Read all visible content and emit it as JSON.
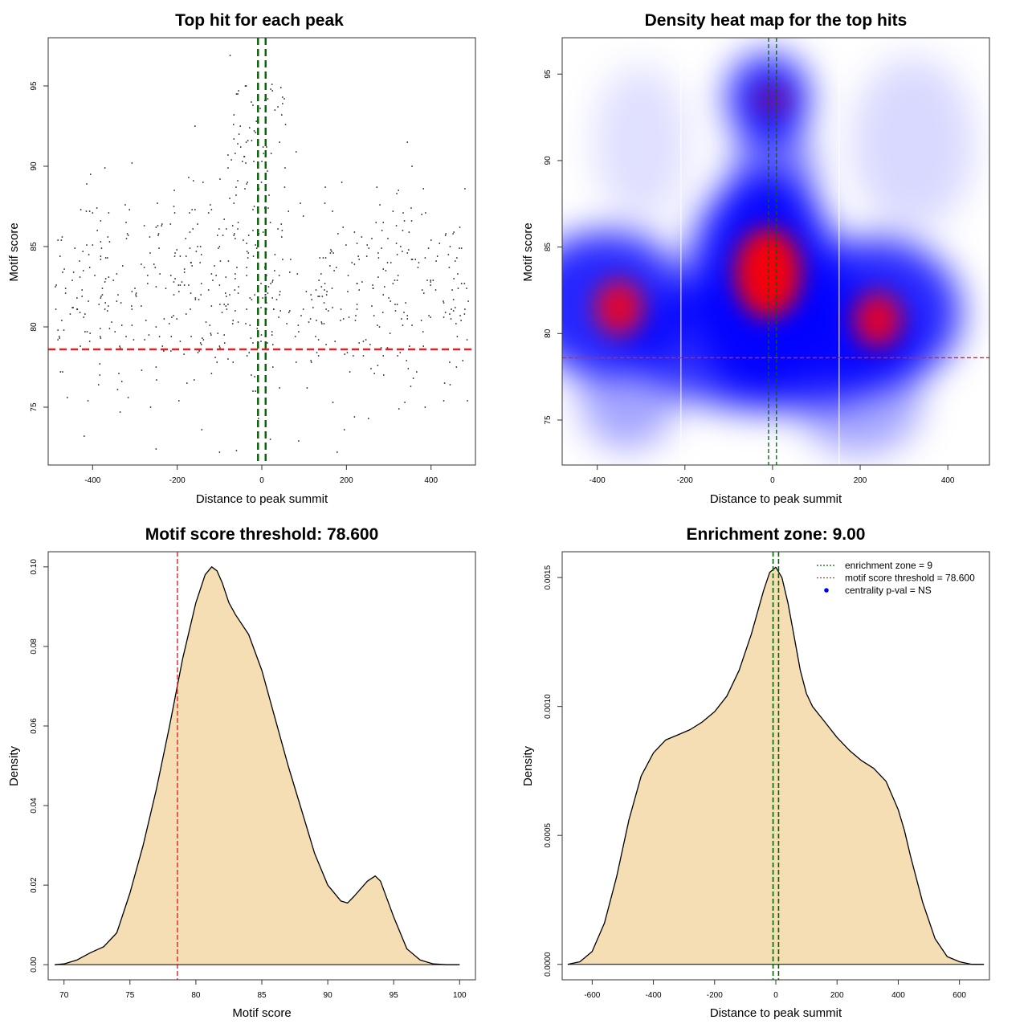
{
  "chart_data": [
    {
      "type": "scatter",
      "title": "Top hit for each peak",
      "xlabel": "Distance to peak summit",
      "ylabel": "Motif score",
      "xlim": [
        -505,
        505
      ],
      "ylim": [
        71.4,
        98.0
      ],
      "x_ticks": [
        -400,
        -200,
        0,
        200,
        400
      ],
      "x_tick_labels": [
        "-400",
        "-200",
        "0",
        "200",
        "400"
      ],
      "y_ticks": [
        75,
        80,
        85,
        90,
        95
      ],
      "y_tick_labels": [
        "75",
        "80",
        "85",
        "90",
        "95"
      ],
      "grid": false,
      "points": [],
      "vlines": [
        {
          "value": -9,
          "color": "#006400",
          "style": "dashed"
        },
        {
          "value": 9,
          "color": "#006400",
          "style": "dashed"
        }
      ],
      "hlines": [
        {
          "value": 78.6,
          "color": "#d62728",
          "style": "dashed"
        }
      ]
    },
    {
      "type": "heatmap",
      "title": "Density heat map for the top hits",
      "xlabel": "Distance to peak summit",
      "ylabel": "Motif score",
      "xlim": [
        -480,
        495
      ],
      "ylim": [
        72.4,
        97.1
      ],
      "x_ticks": [
        -400,
        -200,
        0,
        200,
        400
      ],
      "x_tick_labels": [
        "-400",
        "-200",
        "0",
        "200",
        "400"
      ],
      "y_ticks": [
        75,
        80,
        85,
        90,
        95
      ],
      "y_tick_labels": [
        "75",
        "80",
        "85",
        "90",
        "95"
      ],
      "density_peaks": [
        {
          "x": -350,
          "y": 81.5,
          "level": "high"
        },
        {
          "x": -10,
          "y": 83.5,
          "level": "highest"
        },
        {
          "x": 240,
          "y": 80.8,
          "level": "high"
        },
        {
          "x": 0,
          "y": 93.5,
          "level": "medium"
        }
      ],
      "colors": [
        "#ffffff",
        "#0000ff",
        "#ff0000"
      ],
      "vlines": [
        {
          "value": -209,
          "color": "#ffffff",
          "style": "solid"
        },
        {
          "value": 152,
          "color": "#ffffff",
          "style": "solid"
        },
        {
          "value": -9,
          "color": "#006400",
          "style": "dashed"
        },
        {
          "value": 9,
          "color": "#006400",
          "style": "dashed"
        }
      ],
      "hlines": [
        {
          "value": 78.6,
          "color": "#d62728",
          "style": "dashed"
        }
      ]
    },
    {
      "type": "area",
      "title": "Motif score threshold: 78.600",
      "xlabel": "Motif score",
      "ylabel": "Density",
      "xlim": [
        68.8,
        101.2
      ],
      "ylim": [
        -0.0038,
        0.1038
      ],
      "x_ticks": [
        70,
        75,
        80,
        85,
        90,
        95,
        100
      ],
      "x_tick_labels": [
        "70",
        "75",
        "80",
        "85",
        "90",
        "95",
        "100"
      ],
      "y_ticks": [
        0,
        0.02,
        0.04,
        0.06,
        0.08,
        0.1
      ],
      "y_tick_labels": [
        "0.00",
        "0.02",
        "0.04",
        "0.06",
        "0.08",
        "0.10"
      ],
      "fill": "#f5deb3",
      "x": [
        69.3,
        70,
        71,
        72,
        73,
        74,
        75,
        76,
        77,
        78,
        79,
        80,
        80.7,
        81.2,
        81.6,
        82,
        82.5,
        83,
        84,
        85,
        86,
        87,
        88,
        89,
        90,
        91,
        91.5,
        92,
        93,
        93.6,
        94,
        95,
        96,
        97,
        98,
        99,
        100
      ],
      "y": [
        0,
        0.0002,
        0.0012,
        0.003,
        0.0045,
        0.008,
        0.018,
        0.03,
        0.044,
        0.06,
        0.077,
        0.091,
        0.098,
        0.1,
        0.099,
        0.096,
        0.091,
        0.088,
        0.083,
        0.074,
        0.062,
        0.05,
        0.039,
        0.028,
        0.02,
        0.016,
        0.0155,
        0.0172,
        0.021,
        0.0223,
        0.021,
        0.012,
        0.004,
        0.0012,
        0.0002,
        0.0,
        0
      ],
      "vlines": [
        {
          "value": 78.6,
          "color": "#d62728",
          "style": "dashed"
        }
      ]
    },
    {
      "type": "area",
      "title": "Enrichment zone: 9.00",
      "xlabel": "Distance to peak summit",
      "ylabel": "Density",
      "xlim": [
        -698,
        698
      ],
      "ylim": [
        -6e-05,
        0.0016
      ],
      "x_ticks": [
        -600,
        -400,
        -200,
        0,
        200,
        400,
        600
      ],
      "x_tick_labels": [
        "-600",
        "-400",
        "-200",
        "0",
        "200",
        "400",
        "600"
      ],
      "y_ticks": [
        0,
        0.0005,
        0.001,
        0.0015
      ],
      "y_tick_labels": [
        "0.0000",
        "0.0005",
        "0.0010",
        "0.0015"
      ],
      "fill": "#f5deb3",
      "x": [
        -680,
        -640,
        -600,
        -560,
        -520,
        -480,
        -440,
        -400,
        -360,
        -320,
        -280,
        -240,
        -200,
        -160,
        -120,
        -80,
        -40,
        -20,
        0,
        20,
        40,
        60,
        80,
        100,
        120,
        160,
        200,
        240,
        280,
        320,
        360,
        400,
        420,
        440,
        480,
        520,
        560,
        600,
        640,
        680
      ],
      "y": [
        0,
        1e-05,
        5e-05,
        0.00016,
        0.00034,
        0.00056,
        0.00073,
        0.00082,
        0.00087,
        0.00089,
        0.00091,
        0.00094,
        0.00098,
        0.00104,
        0.00114,
        0.00128,
        0.00145,
        0.00152,
        0.00154,
        0.0015,
        0.0014,
        0.00127,
        0.00114,
        0.00105,
        0.001,
        0.00094,
        0.00088,
        0.00083,
        0.00079,
        0.00076,
        0.00071,
        0.0006,
        0.00052,
        0.00042,
        0.00024,
        0.0001,
        3e-05,
        1e-05,
        0,
        0
      ],
      "vlines": [
        {
          "value": -9,
          "color": "#006400",
          "style": "dashed"
        },
        {
          "value": 9,
          "color": "#006400",
          "style": "dashed"
        }
      ],
      "legend": {
        "placement": "top-right",
        "entries": [
          {
            "label": "enrichment zone = 9",
            "color": "#006400",
            "symbol": "dotted-line"
          },
          {
            "label": "motif score threshold = 78.600",
            "color": "#d62728",
            "symbol": "dotted-line"
          },
          {
            "label": "centrality p-val = NS",
            "color": "#0000ff",
            "symbol": "point"
          }
        ]
      }
    }
  ]
}
